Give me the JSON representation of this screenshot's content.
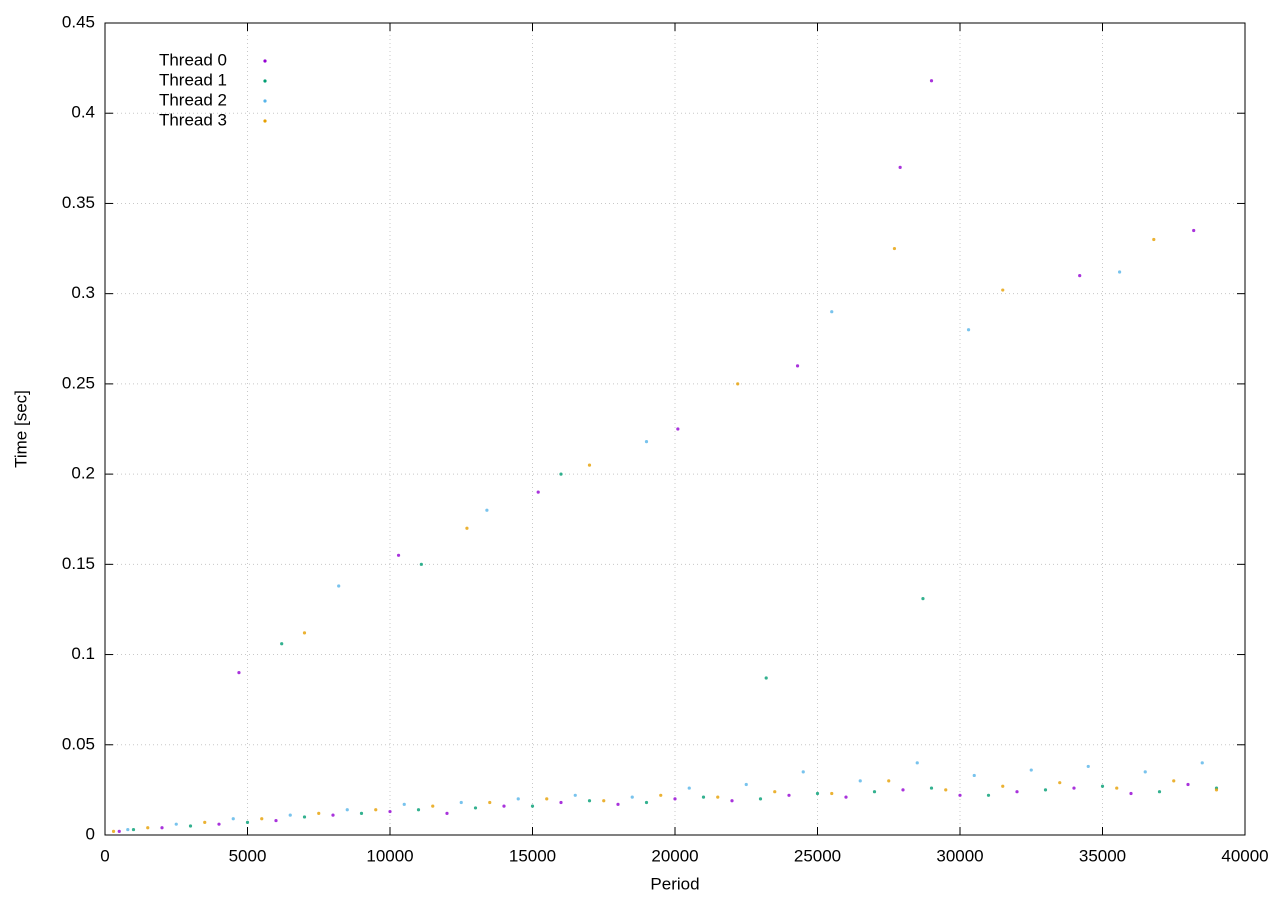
{
  "chart_data": {
    "type": "scatter",
    "xlabel": "Period",
    "ylabel": "Time [sec]",
    "xlim": [
      0,
      40000
    ],
    "ylim": [
      0,
      0.45
    ],
    "xticks": [
      0,
      5000,
      10000,
      15000,
      20000,
      25000,
      30000,
      35000,
      40000
    ],
    "yticks": [
      0,
      0.05,
      0.1,
      0.15,
      0.2,
      0.25,
      0.3,
      0.35,
      0.4,
      0.45
    ],
    "grid": true,
    "legend": "top-left",
    "series": [
      {
        "name": "Thread 0",
        "color": "#9400d3",
        "x": [
          500,
          2000,
          4000,
          6000,
          8000,
          10000,
          12000,
          14000,
          16000,
          18000,
          20000,
          22000,
          24000,
          26000,
          28000,
          30000,
          32000,
          34000,
          36000,
          38000,
          4700,
          10300,
          15200,
          20100,
          24300,
          27900,
          29000,
          34200,
          38200
        ],
        "values": [
          0.002,
          0.004,
          0.006,
          0.008,
          0.011,
          0.013,
          0.012,
          0.016,
          0.018,
          0.017,
          0.02,
          0.019,
          0.022,
          0.021,
          0.025,
          0.022,
          0.024,
          0.026,
          0.023,
          0.028,
          0.09,
          0.155,
          0.19,
          0.225,
          0.26,
          0.37,
          0.418,
          0.31,
          0.335
        ]
      },
      {
        "name": "Thread 1",
        "color": "#009e73",
        "x": [
          1000,
          3000,
          5000,
          7000,
          9000,
          11000,
          13000,
          15000,
          17000,
          19000,
          21000,
          23000,
          25000,
          27000,
          29000,
          31000,
          33000,
          35000,
          37000,
          39000,
          6200,
          11100,
          16000,
          23200,
          28700
        ],
        "values": [
          0.003,
          0.005,
          0.007,
          0.01,
          0.012,
          0.014,
          0.015,
          0.016,
          0.019,
          0.018,
          0.021,
          0.02,
          0.023,
          0.024,
          0.026,
          0.022,
          0.025,
          0.027,
          0.024,
          0.026,
          0.106,
          0.15,
          0.2,
          0.087,
          0.131
        ]
      },
      {
        "name": "Thread 2",
        "color": "#56b4e9",
        "x": [
          800,
          2500,
          4500,
          6500,
          8500,
          10500,
          12500,
          14500,
          16500,
          18500,
          20500,
          22500,
          24500,
          26500,
          28500,
          30500,
          32500,
          34500,
          36500,
          38500,
          8200,
          13400,
          19000,
          25500,
          30300,
          35600
        ],
        "values": [
          0.003,
          0.006,
          0.009,
          0.011,
          0.014,
          0.017,
          0.018,
          0.02,
          0.022,
          0.021,
          0.026,
          0.028,
          0.035,
          0.03,
          0.04,
          0.033,
          0.036,
          0.038,
          0.035,
          0.04,
          0.138,
          0.18,
          0.218,
          0.29,
          0.28,
          0.312
        ]
      },
      {
        "name": "Thread 3",
        "color": "#e69f00",
        "x": [
          300,
          1500,
          3500,
          5500,
          7500,
          9500,
          11500,
          13500,
          15500,
          17500,
          19500,
          21500,
          23500,
          25500,
          27500,
          29500,
          31500,
          33500,
          35500,
          37500,
          39000,
          7000,
          12700,
          17000,
          22200,
          27700,
          31500,
          36800
        ],
        "values": [
          0.002,
          0.004,
          0.007,
          0.009,
          0.012,
          0.014,
          0.016,
          0.018,
          0.02,
          0.019,
          0.022,
          0.021,
          0.024,
          0.023,
          0.03,
          0.025,
          0.027,
          0.029,
          0.026,
          0.03,
          0.025,
          0.112,
          0.17,
          0.205,
          0.25,
          0.325,
          0.302,
          0.33
        ]
      }
    ]
  }
}
